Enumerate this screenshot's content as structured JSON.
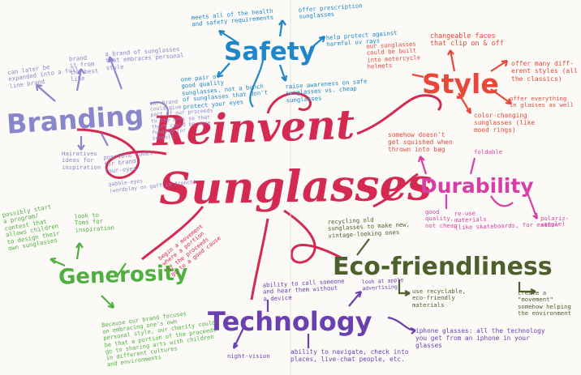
{
  "central": {
    "line1": "Reinvent",
    "line2": "Sunglasses",
    "color": "#d42a52"
  },
  "branches": {
    "branding": {
      "label": "Branding",
      "color": "#8a86cc",
      "notes": [
        "can later be\nexpanded into a full\nline brand",
        "brand\nit from\nthe best\nlike",
        "a brand of sunglasses\nthat embraces personal\nstyle",
        "our brand\ncould give\npart of our proceeds\nto the arts so that\nthere could be more\nfunding for\nschools",
        "Hairatives\nideas for\ninspiration",
        "possible names\nfor brand:\nfour-eyes",
        "gabble-eyes\n(wordplay on gaff in french)"
      ]
    },
    "safety": {
      "label": "Safety",
      "color": "#1f86c9",
      "notes": [
        "meets all of the health\nand safety requirements",
        "offer prescription\nsunglasses",
        "help protect against\nharmful uv rays",
        "one pair of\ngood quality\nsunglasses, not a bunch\nof sunglasses that don't\nprotect your eyes",
        "raise awareness on safe\nsunglasses vs. cheap\nsunglasses"
      ]
    },
    "style": {
      "label": "Style",
      "color": "#e8473a",
      "notes": [
        "changeable faces\nthat clip on & off",
        "our sunglasses\ncould be built\ninto motorcycle\nhelmets",
        "offer many diff-\nerent styles (all\nthe classics)",
        "offer everything\nin glasses as well",
        "color-changing\nsunglasses (like\nmood rings)"
      ]
    },
    "durability": {
      "label": "Durability",
      "color": "#d63fa6",
      "notes": [
        "somehow doesn't\nget squished when\nthrown into bag",
        "foldable",
        "good\nquality,\nnot cheap",
        "re-use\nmaterials\n(like skateboards, for example)",
        "polariz-\nation"
      ]
    },
    "eco": {
      "label": "Eco-friendliness",
      "color": "#4d5f2a",
      "notes": [
        "recycling old\nsunglasses to make new,\nvintage-looking ones",
        "use recyclable,\neco-friendly\nmaterials",
        "create a\n\"movement\"\nsomehow helping\nthe environment"
      ]
    },
    "technology": {
      "label": "Technology",
      "color": "#6a3fb0",
      "notes": [
        "ability to call someone\nand hear them without\na device",
        "look at apple\nadvertising",
        "night-vision",
        "ability to navigate, check into\nplaces, live-chat people, etc.",
        "iphone glasses: all the technology\nyou get from an iphone in your\nglasses"
      ]
    },
    "generosity": {
      "label": "Generosity",
      "color": "#4fb040",
      "notes": [
        "possibly start\na program/\ncontest that\nallows children\nto design their\nown sunglasses",
        "look to\nToms for\ninspiration",
        "begin a movement\nwhere a portion\nof the proceeds\ngo to a good cause",
        "Because our brand focuses\non embracing one's own\npersonal style, our charity could\nbe that a portion of the proceeds\ngo to sharing arts with children\nin different cultures\nand environments"
      ]
    }
  }
}
